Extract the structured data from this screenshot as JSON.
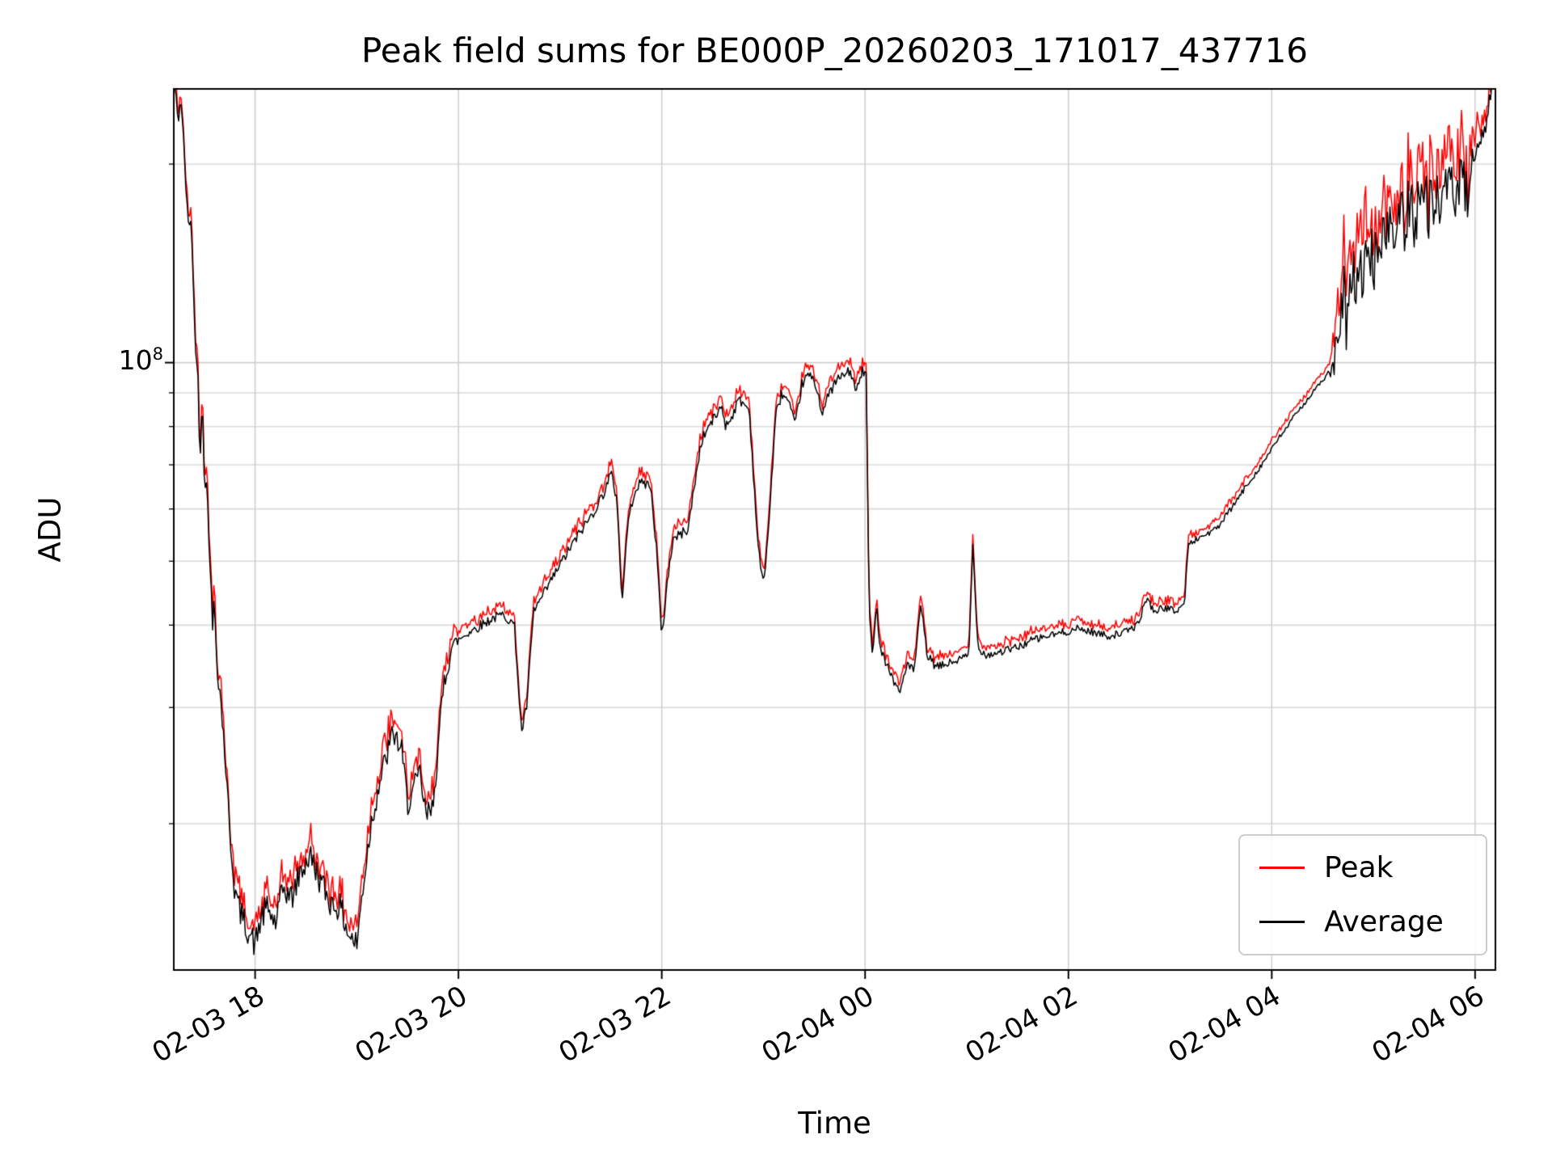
{
  "title": "Peak field sums for BE000P_20260203_171017_437716",
  "axes": {
    "xlabel": "Time",
    "ylabel": "ADU",
    "ytick_base": "10",
    "ytick_exponent": "8"
  },
  "legend": {
    "items": [
      {
        "label": "Peak",
        "color": "#ff0000"
      },
      {
        "label": "Average",
        "color": "#000000"
      }
    ]
  },
  "chart_data": {
    "type": "line",
    "title": "Peak field sums for BE000P_20260203_171017_437716",
    "xlabel": "Time",
    "ylabel": "ADU",
    "yscale": "log",
    "grid": true,
    "legend_position": "lower right",
    "ylim": [
      12000000,
      260000000
    ],
    "ytick": {
      "value": 100000000,
      "label": "10^8"
    },
    "xlim_hours": [
      17.2,
      30.2
    ],
    "xticks": [
      {
        "hours": 18,
        "label": "02-03 18"
      },
      {
        "hours": 20,
        "label": "02-03 20"
      },
      {
        "hours": 22,
        "label": "02-03 22"
      },
      {
        "hours": 24,
        "label": "02-04 00"
      },
      {
        "hours": 26,
        "label": "02-04 02"
      },
      {
        "hours": 28,
        "label": "02-04 04"
      },
      {
        "hours": 30,
        "label": "02-04 06"
      }
    ],
    "values_unit_multiplier": 1000000,
    "series": [
      {
        "name": "Peak",
        "color": "#ff0000",
        "peak_factor_over_average": 1.02
      },
      {
        "name": "Average",
        "color": "#000000",
        "points_t_hours_value_millions": [
          [
            17.2,
            275
          ],
          [
            17.24,
            232
          ],
          [
            17.27,
            252
          ],
          [
            17.31,
            198
          ],
          [
            17.34,
            160
          ],
          [
            17.37,
            168
          ],
          [
            17.4,
            118
          ],
          [
            17.44,
            92
          ],
          [
            17.46,
            70
          ],
          [
            17.48,
            93
          ],
          [
            17.5,
            68
          ],
          [
            17.53,
            63
          ],
          [
            17.56,
            49
          ],
          [
            17.58,
            39
          ],
          [
            17.6,
            44
          ],
          [
            17.62,
            36
          ],
          [
            17.66,
            31
          ],
          [
            17.7,
            26
          ],
          [
            17.75,
            19.5
          ],
          [
            17.8,
            15.8
          ],
          [
            17.86,
            14.6
          ],
          [
            17.92,
            13.9
          ],
          [
            18,
            13.1
          ],
          [
            18.06,
            14.4
          ],
          [
            18.12,
            14.9
          ],
          [
            18.2,
            14.1
          ],
          [
            18.28,
            16
          ],
          [
            18.36,
            15.4
          ],
          [
            18.44,
            16.8
          ],
          [
            18.54,
            17.9
          ],
          [
            18.64,
            16.4
          ],
          [
            18.74,
            15.2
          ],
          [
            18.84,
            14.9
          ],
          [
            18.92,
            13.6
          ],
          [
            19,
            13.1
          ],
          [
            19.06,
            16
          ],
          [
            19.14,
            20
          ],
          [
            19.22,
            23
          ],
          [
            19.3,
            25.5
          ],
          [
            19.36,
            27.5
          ],
          [
            19.44,
            25.8
          ],
          [
            19.5,
            21.5
          ],
          [
            19.56,
            22.5
          ],
          [
            19.62,
            23.8
          ],
          [
            19.68,
            20.5
          ],
          [
            19.74,
            21
          ],
          [
            19.8,
            26
          ],
          [
            19.86,
            33
          ],
          [
            19.93,
            37
          ],
          [
            20,
            38
          ],
          [
            20.1,
            39
          ],
          [
            20.22,
            40
          ],
          [
            20.34,
            41
          ],
          [
            20.45,
            41.5
          ],
          [
            20.55,
            40
          ],
          [
            20.62,
            27.5
          ],
          [
            20.67,
            30
          ],
          [
            20.74,
            42
          ],
          [
            20.82,
            44
          ],
          [
            20.92,
            47
          ],
          [
            21.02,
            50
          ],
          [
            21.12,
            53
          ],
          [
            21.22,
            56
          ],
          [
            21.32,
            59
          ],
          [
            21.42,
            63
          ],
          [
            21.5,
            68
          ],
          [
            21.56,
            62
          ],
          [
            21.61,
            43
          ],
          [
            21.66,
            56
          ],
          [
            21.73,
            64
          ],
          [
            21.81,
            66
          ],
          [
            21.89,
            65
          ],
          [
            21.95,
            52
          ],
          [
            22,
            38
          ],
          [
            22.05,
            46
          ],
          [
            22.11,
            54
          ],
          [
            22.19,
            55
          ],
          [
            22.26,
            56
          ],
          [
            22.32,
            65
          ],
          [
            22.39,
            76
          ],
          [
            22.46,
            80
          ],
          [
            22.53,
            83
          ],
          [
            22.59,
            86
          ],
          [
            22.63,
            80
          ],
          [
            22.69,
            83
          ],
          [
            22.76,
            88
          ],
          [
            22.86,
            85
          ],
          [
            22.95,
            52
          ],
          [
            23,
            46
          ],
          [
            23.05,
            56
          ],
          [
            23.12,
            83
          ],
          [
            23.18,
            90
          ],
          [
            23.25,
            87
          ],
          [
            23.31,
            80
          ],
          [
            23.38,
            93
          ],
          [
            23.45,
            96
          ],
          [
            23.52,
            92
          ],
          [
            23.58,
            84
          ],
          [
            23.65,
            90
          ],
          [
            23.72,
            94
          ],
          [
            23.8,
            96
          ],
          [
            23.86,
            97
          ],
          [
            23.91,
            90
          ],
          [
            23.97,
            97
          ],
          [
            24.01,
            96
          ],
          [
            24.04,
            42
          ],
          [
            24.07,
            36
          ],
          [
            24.11,
            43
          ],
          [
            24.15,
            37
          ],
          [
            24.21,
            35
          ],
          [
            24.28,
            33
          ],
          [
            24.34,
            31.5
          ],
          [
            24.41,
            35
          ],
          [
            24.48,
            34
          ],
          [
            24.55,
            43
          ],
          [
            24.61,
            36
          ],
          [
            24.7,
            34.5
          ],
          [
            24.82,
            35
          ],
          [
            24.94,
            35.5
          ],
          [
            25.02,
            36
          ],
          [
            25.06,
            53
          ],
          [
            25.11,
            37
          ],
          [
            25.2,
            36
          ],
          [
            25.35,
            36.5
          ],
          [
            25.5,
            37
          ],
          [
            25.65,
            38
          ],
          [
            25.8,
            38.5
          ],
          [
            25.95,
            39
          ],
          [
            26.1,
            39.5
          ],
          [
            26.25,
            39
          ],
          [
            26.4,
            38.5
          ],
          [
            26.55,
            39
          ],
          [
            26.68,
            40
          ],
          [
            26.77,
            44
          ],
          [
            26.84,
            42
          ],
          [
            26.95,
            42.5
          ],
          [
            27.05,
            42
          ],
          [
            27.14,
            43
          ],
          [
            27.18,
            53
          ],
          [
            27.26,
            54
          ],
          [
            27.36,
            55
          ],
          [
            27.46,
            56
          ],
          [
            27.6,
            60
          ],
          [
            27.75,
            65
          ],
          [
            27.9,
            70
          ],
          [
            28.05,
            76
          ],
          [
            28.2,
            82
          ],
          [
            28.35,
            88
          ],
          [
            28.5,
            94
          ],
          [
            28.6,
            98
          ],
          [
            28.66,
            105
          ],
          [
            28.71,
            125
          ],
          [
            28.75,
            110
          ],
          [
            28.79,
            145
          ],
          [
            28.83,
            120
          ],
          [
            28.87,
            150
          ],
          [
            28.91,
            130
          ],
          [
            28.96,
            155
          ],
          [
            29.01,
            135
          ],
          [
            29.06,
            160
          ],
          [
            29.11,
            145
          ],
          [
            29.16,
            170
          ],
          [
            29.21,
            150
          ],
          [
            29.26,
            175
          ],
          [
            29.31,
            160
          ],
          [
            29.36,
            180
          ],
          [
            29.41,
            165
          ],
          [
            29.46,
            185
          ],
          [
            29.51,
            170
          ],
          [
            29.6,
            180
          ],
          [
            29.7,
            175
          ],
          [
            29.8,
            185
          ],
          [
            29.9,
            180
          ],
          [
            30,
            195
          ],
          [
            30.05,
            210
          ],
          [
            30.1,
            230
          ],
          [
            30.15,
            255
          ],
          [
            30.2,
            280
          ]
        ]
      }
    ],
    "noise_profile_log10_amplitude": [
      [
        17.2,
        0.012
      ],
      [
        17.7,
        0.02
      ],
      [
        18,
        0.022
      ],
      [
        19.9,
        0.02
      ],
      [
        20,
        0.008
      ],
      [
        24,
        0.008
      ],
      [
        24.1,
        0.007
      ],
      [
        27.5,
        0.005
      ],
      [
        28.55,
        0.003
      ],
      [
        28.65,
        0.055
      ],
      [
        29.95,
        0.05
      ],
      [
        30.05,
        0.02
      ],
      [
        30.2,
        0.015
      ]
    ]
  }
}
